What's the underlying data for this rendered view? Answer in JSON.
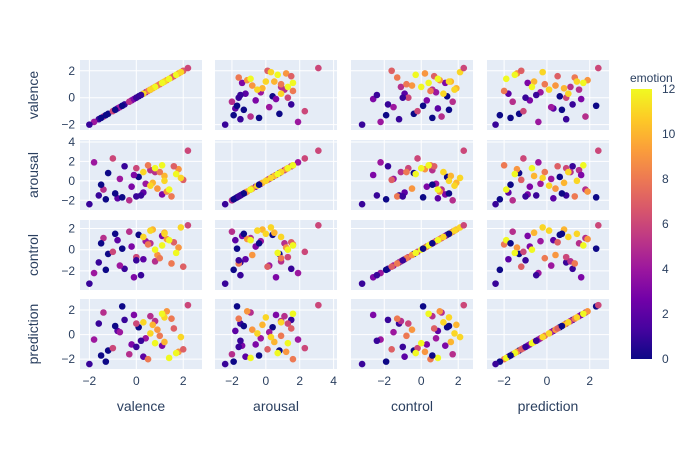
{
  "chart_data": {
    "type": "scatter",
    "subtype": "scatter-matrix",
    "dimensions": [
      "valence",
      "arousal",
      "control",
      "prediction"
    ],
    "color_by": {
      "title": "emotion",
      "range": [
        0,
        12
      ],
      "ticks": [
        "0",
        "2",
        "4",
        "6",
        "8",
        "10",
        "12"
      ],
      "colorscale": [
        "#0d0887",
        "#46039f",
        "#7201a8",
        "#9c179e",
        "#bd3786",
        "#d8576b",
        "#ed7953",
        "#fb9f3a",
        "#fdca26",
        "#f0f921"
      ]
    },
    "axis_ranges": {
      "valence": [
        -2.4,
        2.8
      ],
      "arousal": [
        -3.0,
        4.2
      ],
      "control": [
        -3.8,
        2.8
      ],
      "prediction": [
        -2.8,
        2.9
      ]
    },
    "axis_ticks": {
      "valence": [
        "-2",
        "0",
        "2"
      ],
      "arousal": [
        "-2",
        "0",
        "2",
        "4"
      ],
      "control": [
        "-2",
        "0",
        "2"
      ],
      "prediction": [
        "-2",
        "0",
        "2"
      ]
    },
    "grid": true,
    "plot_background": "#e5ecf6",
    "diagonal": "identity scatter (each variable plotted against itself)",
    "points": [
      {
        "valence": -1.6,
        "arousal": -1.5,
        "control": -1.2,
        "prediction": 0.9,
        "emotion": 1
      },
      {
        "valence": -1.2,
        "arousal": 0.8,
        "control": -0.4,
        "prediction": -1.3,
        "emotion": 0
      },
      {
        "valence": -0.8,
        "arousal": -1.8,
        "control": 0.9,
        "prediction": 0.3,
        "emotion": 2
      },
      {
        "valence": -0.5,
        "arousal": 1.5,
        "control": -1.8,
        "prediction": 1.2,
        "emotion": 1
      },
      {
        "valence": -0.2,
        "arousal": -0.6,
        "control": 0.3,
        "prediction": -0.8,
        "emotion": 3
      },
      {
        "valence": 0.1,
        "arousal": 0.4,
        "control": 1.4,
        "prediction": 0.6,
        "emotion": 0
      },
      {
        "valence": 0.3,
        "arousal": -1.2,
        "control": -0.9,
        "prediction": -1.8,
        "emotion": 2
      },
      {
        "valence": 0.6,
        "arousal": 1.1,
        "control": 0.6,
        "prediction": 1.5,
        "emotion": 5
      },
      {
        "valence": -1.8,
        "arousal": 1.9,
        "control": -2.2,
        "prediction": -0.4,
        "emotion": 4
      },
      {
        "valence": -1.4,
        "arousal": -0.9,
        "control": 1.1,
        "prediction": 1.8,
        "emotion": 5
      },
      {
        "valence": -1.0,
        "arousal": 2.3,
        "control": -0.2,
        "prediction": -1.1,
        "emotion": 6
      },
      {
        "valence": -0.7,
        "arousal": 0.2,
        "control": -1.5,
        "prediction": 0.2,
        "emotion": 4
      },
      {
        "valence": -0.3,
        "arousal": -2.0,
        "control": 1.7,
        "prediction": -1.6,
        "emotion": 5
      },
      {
        "valence": 0.0,
        "arousal": 1.3,
        "control": -0.7,
        "prediction": 0.9,
        "emotion": 6
      },
      {
        "valence": 0.4,
        "arousal": -0.3,
        "control": 0.8,
        "prediction": -0.3,
        "emotion": 4
      },
      {
        "valence": 0.8,
        "arousal": 0.9,
        "control": -1.1,
        "prediction": 1.1,
        "emotion": 5
      },
      {
        "valence": 1.1,
        "arousal": -1.4,
        "control": 1.3,
        "prediction": -0.9,
        "emotion": 3
      },
      {
        "valence": -0.1,
        "arousal": 0.6,
        "control": -2.6,
        "prediction": 1.6,
        "emotion": 3
      },
      {
        "valence": 0.5,
        "arousal": 1.6,
        "control": 0.5,
        "prediction": -2.0,
        "emotion": 8
      },
      {
        "valence": 0.9,
        "arousal": -0.8,
        "control": -0.5,
        "prediction": 0.4,
        "emotion": 9
      },
      {
        "valence": 1.2,
        "arousal": 0.5,
        "control": 1.6,
        "prediction": -0.6,
        "emotion": 10
      },
      {
        "valence": 1.5,
        "arousal": -1.6,
        "control": -1.3,
        "prediction": 1.3,
        "emotion": 8
      },
      {
        "valence": 1.8,
        "arousal": 1.2,
        "control": 0.2,
        "prediction": -1.4,
        "emotion": 9
      },
      {
        "valence": 0.7,
        "arousal": -0.2,
        "control": 1.9,
        "prediction": 0.8,
        "emotion": 10
      },
      {
        "valence": 1.0,
        "arousal": 0.9,
        "control": -0.8,
        "prediction": -0.1,
        "emotion": 8
      },
      {
        "valence": 1.3,
        "arousal": -1.1,
        "control": 1.0,
        "prediction": 1.9,
        "emotion": 9
      },
      {
        "valence": 2.0,
        "arousal": 0.1,
        "control": -1.6,
        "prediction": -1.2,
        "emotion": 7
      },
      {
        "valence": 1.6,
        "arousal": 1.5,
        "control": 0.7,
        "prediction": 0.5,
        "emotion": 7
      },
      {
        "valence": 0.3,
        "arousal": 0.9,
        "control": 1.2,
        "prediction": 1.0,
        "emotion": 11
      },
      {
        "valence": 0.8,
        "arousal": 1.3,
        "control": 0.0,
        "prediction": -0.7,
        "emotion": 12
      },
      {
        "valence": 1.2,
        "arousal": 0.0,
        "control": 1.5,
        "prediction": 1.4,
        "emotion": 11
      },
      {
        "valence": 1.7,
        "arousal": 0.7,
        "control": -0.3,
        "prediction": -1.5,
        "emotion": 12
      },
      {
        "valence": 0.6,
        "arousal": -0.5,
        "control": 1.8,
        "prediction": 0.1,
        "emotion": 11
      },
      {
        "valence": 1.1,
        "arousal": 1.6,
        "control": 0.4,
        "prediction": 1.7,
        "emotion": 12
      },
      {
        "valence": 1.9,
        "arousal": 0.3,
        "control": 2.1,
        "prediction": -0.2,
        "emotion": 11
      },
      {
        "valence": 1.4,
        "arousal": -0.9,
        "control": 0.9,
        "prediction": -1.9,
        "emotion": 12
      },
      {
        "valence": -1.3,
        "arousal": -1.9,
        "control": -1.9,
        "prediction": -2.2,
        "emotion": 0
      },
      {
        "valence": -0.6,
        "arousal": -1.7,
        "control": 0.1,
        "prediction": 2.3,
        "emotion": 0
      },
      {
        "valence": 0.2,
        "arousal": -1.5,
        "control": -2.4,
        "prediction": -0.5,
        "emotion": 1
      },
      {
        "valence": -0.9,
        "arousal": -1.3,
        "control": 1.5,
        "prediction": 0.7,
        "emotion": 0
      },
      {
        "valence": 0.0,
        "arousal": -1.6,
        "control": -1.0,
        "prediction": -1.0,
        "emotion": 1
      },
      {
        "valence": -1.5,
        "arousal": -0.4,
        "control": 0.6,
        "prediction": -1.7,
        "emotion": 0
      },
      {
        "valence": 2.2,
        "arousal": 3.1,
        "control": 2.3,
        "prediction": 2.4,
        "emotion": 6
      },
      {
        "valence": -2.0,
        "arousal": -2.4,
        "control": -3.2,
        "prediction": -2.4,
        "emotion": 1
      }
    ]
  }
}
